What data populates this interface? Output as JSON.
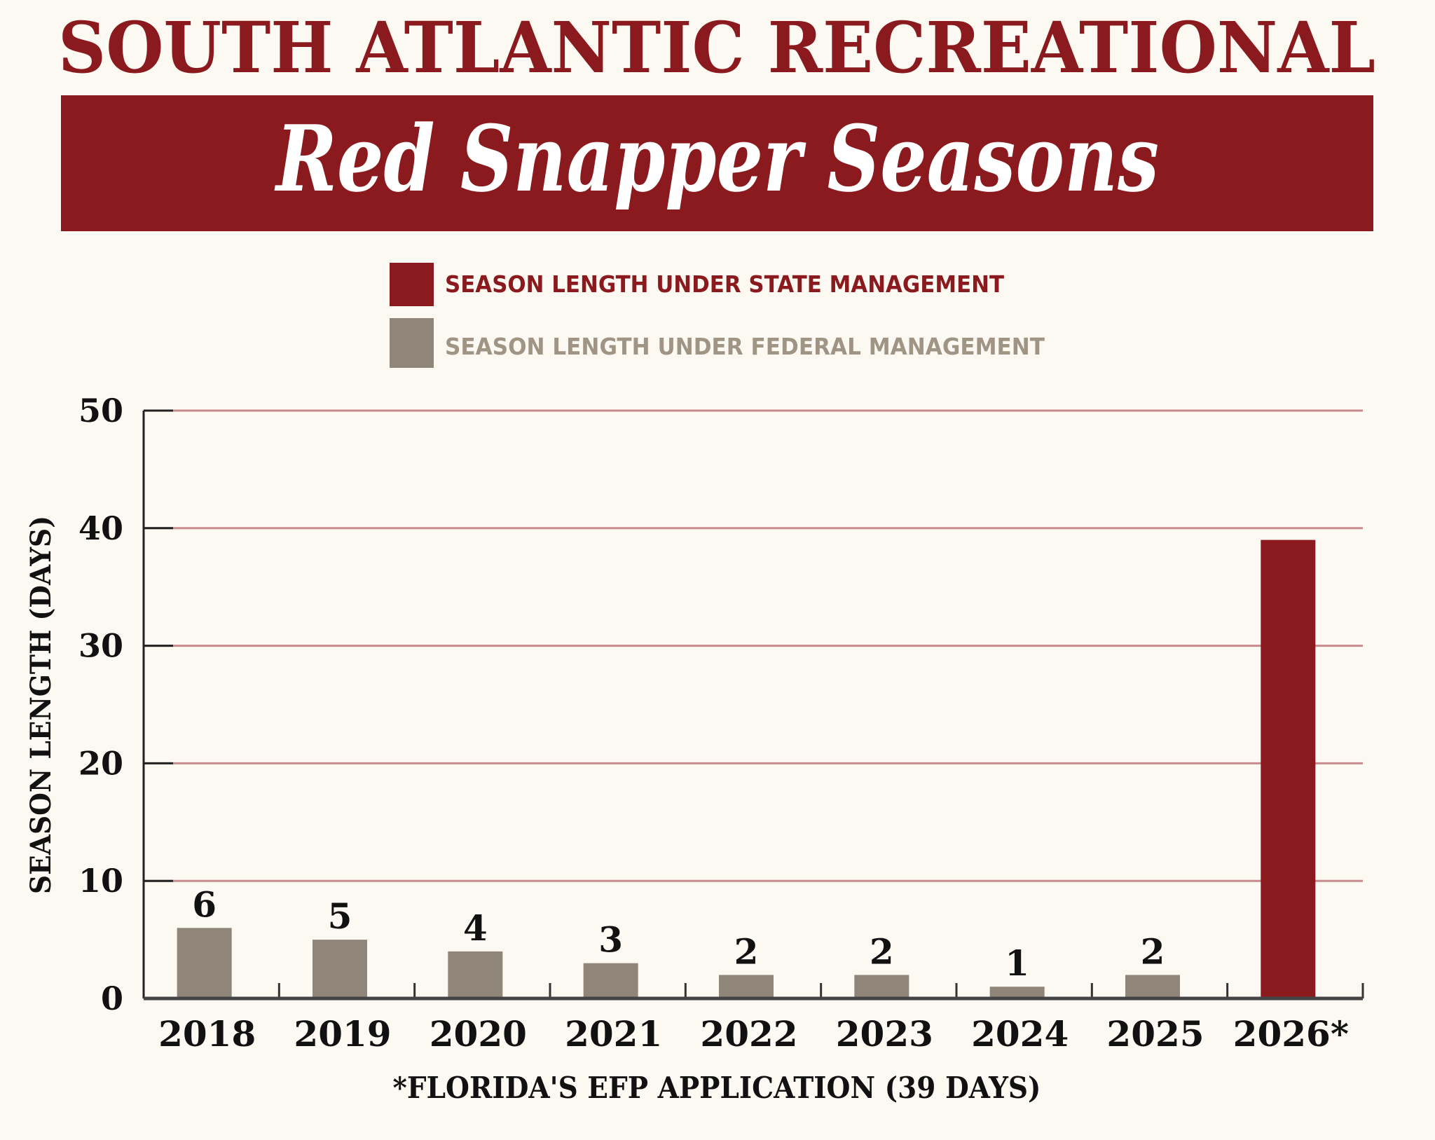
{
  "header": {
    "title": "SOUTH ATLANTIC RECREATIONAL",
    "banner_title": "Red Snapper Seasons"
  },
  "colors": {
    "brand_red": "#8b1a1e",
    "federal_gray": "#8f8578",
    "background": "#fcf9f3",
    "gridline": "#c98a8e"
  },
  "chart_data": {
    "type": "bar",
    "title": "Red Snapper Seasons",
    "ylabel": "SEASON LENGTH (DAYS)",
    "xlabel": "",
    "ylim": [
      0,
      50
    ],
    "yticks": [
      "0",
      "10",
      "20",
      "30",
      "40",
      "50"
    ],
    "grid": true,
    "legend_position": "top-center",
    "legend": [
      {
        "name": "SEASON LENGTH UNDER STATE MANAGEMENT",
        "color": "#8b1a1e"
      },
      {
        "name": "SEASON LENGTH UNDER FEDERAL MANAGEMENT",
        "color": "#8f8578"
      }
    ],
    "categories": [
      "2018",
      "2019",
      "2020",
      "2021",
      "2022",
      "2023",
      "2024",
      "2025",
      "2026*"
    ],
    "values": [
      6,
      5,
      4,
      3,
      2,
      2,
      1,
      2,
      39
    ],
    "management": [
      "federal",
      "federal",
      "federal",
      "federal",
      "federal",
      "federal",
      "federal",
      "federal",
      "state"
    ],
    "data_labels": [
      "6",
      "5",
      "4",
      "3",
      "2",
      "2",
      "1",
      "2",
      ""
    ],
    "footnote": "*FLORIDA'S EFP APPLICATION (39 DAYS)"
  }
}
